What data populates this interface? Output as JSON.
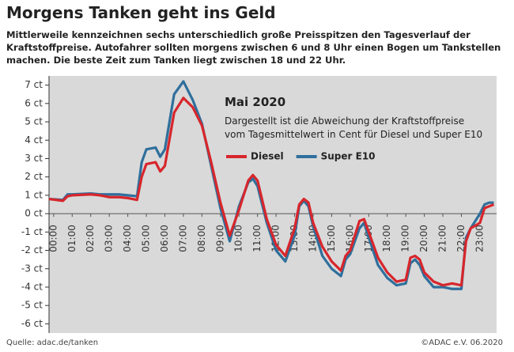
{
  "chart_data": {
    "type": "line",
    "title": "Morgens Tanken geht ins Geld",
    "subtitle": "Mittlerweile kennzeichnen sechs unterschiedlich große Preisspitzen den Tagesverlauf der Kraftstoffpreise. Autofahrer sollten morgens zwischen 6 und 8 Uhr einen Bogen um Tankstellen machen. Die beste Zeit zum Tanken liegt zwischen 18 und 22 Uhr.",
    "inset_title": "Mai 2020",
    "inset_text": "Dargestellt ist die Abweichung der Kraftstoffpreise vom Tagesmittelwert in Cent für Diesel und Super E10",
    "source": "Quelle: adac.de/tanken",
    "credit": "©ADAC e.V.  06.2020",
    "x": [
      -0.25,
      0.5,
      0.75,
      1,
      2,
      2.5,
      3,
      3.5,
      4,
      4.5,
      4.75,
      5,
      5.5,
      5.75,
      6,
      6.5,
      7,
      7.5,
      8,
      8.5,
      9,
      9.5,
      10,
      10.5,
      10.75,
      11,
      11.5,
      12,
      12.5,
      13,
      13.25,
      13.5,
      13.75,
      14,
      14.5,
      15,
      15.5,
      15.75,
      16,
      16.5,
      16.75,
      17,
      17.5,
      18,
      18.5,
      19,
      19.25,
      19.5,
      19.75,
      20,
      20.5,
      21,
      21.5,
      22,
      22.25,
      22.5,
      23,
      23.25,
      23.5,
      23.75
    ],
    "series": [
      {
        "name": "Diesel",
        "color": "#d7262c",
        "values": [
          0.8,
          0.7,
          0.95,
          1.0,
          1.05,
          1.0,
          0.9,
          0.9,
          0.85,
          0.75,
          2.0,
          2.7,
          2.8,
          2.3,
          2.6,
          5.5,
          6.3,
          5.8,
          4.8,
          2.8,
          0.6,
          -1.2,
          0.2,
          1.8,
          2.1,
          1.8,
          -0.3,
          -1.7,
          -2.3,
          -0.8,
          0.5,
          0.8,
          0.6,
          -0.5,
          -1.8,
          -2.6,
          -3.1,
          -2.3,
          -2.0,
          -0.4,
          -0.3,
          -1.0,
          -2.4,
          -3.2,
          -3.7,
          -3.6,
          -2.4,
          -2.3,
          -2.5,
          -3.2,
          -3.7,
          -3.9,
          -3.8,
          -3.9,
          -1.5,
          -0.8,
          -0.5,
          0.3,
          0.4,
          0.5
        ]
      },
      {
        "name": "Super E10",
        "color": "#2f6f9c",
        "values": [
          0.8,
          0.75,
          1.05,
          1.05,
          1.1,
          1.05,
          1.05,
          1.05,
          1.0,
          0.95,
          2.8,
          3.5,
          3.6,
          3.1,
          3.5,
          6.5,
          7.2,
          6.2,
          4.9,
          2.6,
          0.3,
          -1.5,
          0.4,
          1.7,
          1.9,
          1.5,
          -0.5,
          -2.0,
          -2.6,
          -1.2,
          0.4,
          0.7,
          0.4,
          -0.7,
          -2.3,
          -3.0,
          -3.4,
          -2.5,
          -2.2,
          -0.8,
          -0.5,
          -1.3,
          -2.8,
          -3.5,
          -3.9,
          -3.8,
          -2.7,
          -2.5,
          -2.8,
          -3.4,
          -4.0,
          -4.0,
          -4.1,
          -4.1,
          -1.3,
          -0.8,
          0.0,
          0.5,
          0.6,
          0.6
        ]
      }
    ],
    "xlim": [
      -0.25,
      23.9
    ],
    "xticks": [
      {
        "value": 0,
        "label": "00:00"
      },
      {
        "value": 1,
        "label": "01:00"
      },
      {
        "value": 2,
        "label": "02:00"
      },
      {
        "value": 3,
        "label": "03:00"
      },
      {
        "value": 4,
        "label": "04:00"
      },
      {
        "value": 5,
        "label": "05:00"
      },
      {
        "value": 6,
        "label": "06:00"
      },
      {
        "value": 7,
        "label": "07:00"
      },
      {
        "value": 8,
        "label": "08:00"
      },
      {
        "value": 9,
        "label": "09:00"
      },
      {
        "value": 10,
        "label": "10:00"
      },
      {
        "value": 11,
        "label": "11:00"
      },
      {
        "value": 12,
        "label": "12:00"
      },
      {
        "value": 13,
        "label": "13:00"
      },
      {
        "value": 14,
        "label": "14:00"
      },
      {
        "value": 15,
        "label": "15:00"
      },
      {
        "value": 16,
        "label": "16:00"
      },
      {
        "value": 17,
        "label": "17:00"
      },
      {
        "value": 18,
        "label": "18:00"
      },
      {
        "value": 19,
        "label": "19:00"
      },
      {
        "value": 20,
        "label": "20:00"
      },
      {
        "value": 21,
        "label": "21:00"
      },
      {
        "value": 22,
        "label": "22:00"
      },
      {
        "value": 23,
        "label": "23:00"
      }
    ],
    "ylim": [
      -6.5,
      7.5
    ],
    "yticks": [
      {
        "value": 7,
        "label": "7 ct"
      },
      {
        "value": 6,
        "label": "6 ct"
      },
      {
        "value": 5,
        "label": "5 ct"
      },
      {
        "value": 4,
        "label": "4 ct"
      },
      {
        "value": 3,
        "label": "3 ct"
      },
      {
        "value": 2,
        "label": "2 ct"
      },
      {
        "value": 1,
        "label": "1 ct"
      },
      {
        "value": 0,
        "label": "0 ct"
      },
      {
        "value": -1,
        "label": "-1 ct"
      },
      {
        "value": -2,
        "label": "-2 ct"
      },
      {
        "value": -3,
        "label": "-3 ct"
      },
      {
        "value": -4,
        "label": "-4 ct"
      },
      {
        "value": -5,
        "label": "-5 ct"
      },
      {
        "value": -6,
        "label": "-6 ct"
      }
    ]
  }
}
